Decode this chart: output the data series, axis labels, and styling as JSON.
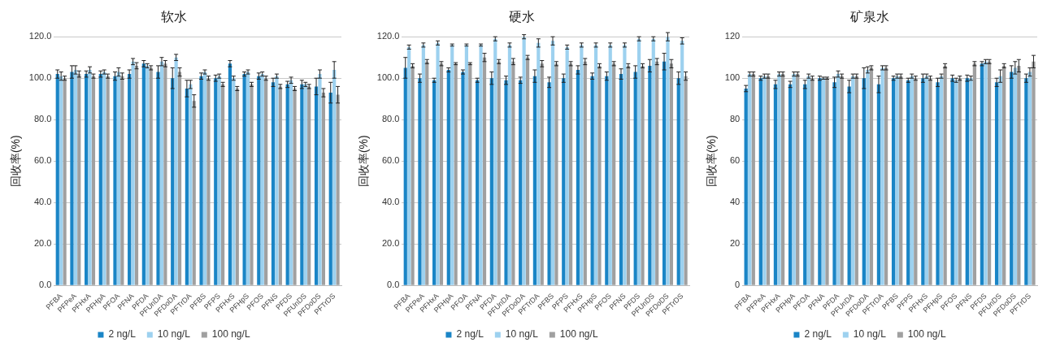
{
  "chart_data": [
    {
      "type": "bar",
      "title": "软水",
      "ylabel": "回收率(%)",
      "categories": [
        "PFBA",
        "PFPeA",
        "PFHxA",
        "PFHpA",
        "PFOA",
        "PFNA",
        "PFDA",
        "PFUnDA",
        "PFDoDA",
        "PFTrDA",
        "PFBS",
        "PFPS",
        "PFHxS",
        "PFHpS",
        "PFOS",
        "PFNS",
        "PFDS",
        "PFUnDS",
        "PFDoDS",
        "PFTrDS"
      ],
      "series": [
        {
          "name": "2 ng/L",
          "color": "#1a85c6",
          "values": [
            102,
            103,
            102,
            102,
            101,
            102,
            107,
            103,
            100,
            95,
            101,
            100,
            107,
            102,
            101,
            98,
            97,
            97,
            96,
            93
          ],
          "errors": [
            2,
            3,
            1.5,
            1.5,
            2,
            2,
            1.5,
            3,
            5,
            4,
            1.5,
            1.5,
            1.5,
            1,
            1.5,
            2,
            1.5,
            2,
            4,
            5
          ]
        },
        {
          "name": "10 ng/L",
          "color": "#9dd1ef",
          "values": [
            101,
            104,
            104,
            103,
            103,
            108,
            106,
            108,
            110,
            97,
            103,
            101,
            100,
            103,
            102,
            101,
            99,
            97,
            102,
            104
          ],
          "errors": [
            2,
            2,
            1.5,
            1,
            2,
            1.5,
            1,
            2,
            1.5,
            2,
            1,
            1,
            1,
            1,
            1,
            1,
            1.5,
            1,
            2,
            4
          ]
        },
        {
          "name": "100 ng/L",
          "color": "#a0a0a0",
          "values": [
            100,
            102,
            101,
            101,
            101,
            106,
            105,
            107,
            103,
            89,
            100,
            97,
            95,
            97,
            100,
            96,
            95,
            96,
            93,
            92
          ],
          "errors": [
            1,
            1.5,
            1,
            1,
            1.5,
            1.5,
            1,
            1.5,
            2,
            3,
            1,
            1,
            1,
            1,
            1,
            1,
            1,
            1,
            2,
            4
          ]
        }
      ],
      "ylim": [
        0,
        120
      ],
      "yticks": [
        {
          "value": 0,
          "label": "0.0"
        },
        {
          "value": 20,
          "label": "20.0"
        },
        {
          "value": 40,
          "label": "40.0"
        },
        {
          "value": 60,
          "label": "60.0"
        },
        {
          "value": 80,
          "label": "80.0"
        },
        {
          "value": 100,
          "label": "100.0"
        },
        {
          "value": 120,
          "label": "120.0"
        }
      ],
      "grid": "y",
      "legend": "bottom"
    },
    {
      "type": "bar",
      "title": "硬水",
      "ylabel": "回收率(%)",
      "categories": [
        "PFBA",
        "PFPeA",
        "PFHxA",
        "PFHpA",
        "PFOA",
        "PFNA",
        "PFDA",
        "PFUnDA",
        "PFDoDA",
        "PFTrDA",
        "PFBS",
        "PFPS",
        "PFHxS",
        "PFHpS",
        "PFOS",
        "PFNS",
        "PFDS",
        "PFUnDS",
        "PFDoDS",
        "PFTrDS"
      ],
      "series": [
        {
          "name": "2 ng/L",
          "color": "#1a85c6",
          "values": [
            105,
            100,
            99,
            104,
            103,
            99,
            100,
            99,
            99,
            101,
            98,
            100,
            104,
            101,
            101,
            102,
            103,
            106,
            108,
            100
          ],
          "errors": [
            5,
            2,
            1,
            1,
            1,
            1,
            3,
            2,
            1.5,
            3,
            2.5,
            2,
            2,
            1.5,
            2,
            2.5,
            3,
            3,
            4,
            3
          ]
        },
        {
          "name": "10 ng/L",
          "color": "#9dd1ef",
          "values": [
            115,
            116,
            117,
            116,
            116,
            116,
            119,
            116,
            120,
            117,
            118,
            115,
            116,
            116,
            116,
            116,
            119,
            119,
            120,
            118
          ],
          "errors": [
            1,
            1,
            1,
            0.5,
            0.5,
            0.5,
            1,
            1,
            1,
            2,
            2,
            1,
            1,
            1,
            1,
            1,
            1,
            1,
            2,
            1.5
          ]
        },
        {
          "name": "100 ng/L",
          "color": "#a0a0a0",
          "values": [
            106,
            108,
            107,
            107,
            107,
            110,
            108,
            108,
            110,
            107,
            107,
            107,
            108,
            106,
            107,
            106,
            106,
            108,
            107,
            101
          ],
          "errors": [
            1,
            1,
            1,
            0.5,
            0.5,
            2,
            1,
            1.5,
            1,
            1.5,
            1,
            1,
            1.5,
            1,
            1,
            1,
            1,
            1.5,
            2,
            2
          ]
        }
      ],
      "ylim": [
        0,
        120
      ],
      "yticks": [
        {
          "value": 0,
          "label": "0.0"
        },
        {
          "value": 20,
          "label": "20.0"
        },
        {
          "value": 40,
          "label": "40.0"
        },
        {
          "value": 60,
          "label": "60.0"
        },
        {
          "value": 80,
          "label": "80.0"
        },
        {
          "value": 100,
          "label": "100.0"
        },
        {
          "value": 120,
          "label": "120.0"
        }
      ],
      "grid": "y",
      "legend": "bottom"
    },
    {
      "type": "bar",
      "title": "矿泉水",
      "ylabel": "回收率(%)",
      "categories": [
        "PFBA",
        "PFPeA",
        "PFHxA",
        "PFHpA",
        "PFOA",
        "PFNA",
        "PFDA",
        "PFUnDA",
        "PFDoDA",
        "PFTrDA",
        "PFBS",
        "PFPS",
        "PFHxS",
        "PFHpS",
        "PFOS",
        "PFNS",
        "PFDS",
        "PFUnDS",
        "PFDoDS",
        "PFTrDS"
      ],
      "series": [
        {
          "name": "2 ng/L",
          "color": "#1a85c6",
          "values": [
            95,
            100,
            97,
            97,
            97,
            100,
            98,
            96,
            100,
            97,
            100,
            99,
            100,
            98,
            100,
            100,
            107,
            98,
            103,
            100
          ],
          "errors": [
            1.5,
            1,
            2,
            1.5,
            2,
            1,
            2.5,
            3,
            5,
            4,
            1,
            1,
            2,
            2,
            1.5,
            1.5,
            1,
            2,
            3,
            2
          ]
        },
        {
          "name": "10 ng/L",
          "color": "#9dd1ef",
          "values": [
            102,
            101,
            102,
            102,
            101,
            100,
            102,
            101,
            104,
            105,
            101,
            101,
            101,
            101,
            99,
            100,
            108,
            101,
            105,
            103
          ],
          "errors": [
            1,
            1,
            1,
            1,
            1,
            0.5,
            1.5,
            1,
            1.5,
            1,
            1,
            1,
            1,
            1,
            1,
            1,
            1,
            3,
            3,
            2
          ]
        },
        {
          "name": "100 ng/L",
          "color": "#a0a0a0",
          "values": [
            102,
            101,
            102,
            102,
            100,
            100,
            101,
            101,
            105,
            105,
            101,
            100,
            100,
            106,
            100,
            107,
            108,
            106,
            106,
            108
          ],
          "errors": [
            1,
            1,
            1,
            1,
            1,
            0.5,
            1,
            1,
            1,
            1,
            1,
            1,
            1,
            1,
            1,
            1,
            1,
            1,
            3,
            3
          ]
        }
      ],
      "ylim": [
        0,
        120
      ],
      "yticks": [
        0,
        20,
        40,
        60,
        80,
        100,
        120
      ],
      "grid": "y",
      "legend": "bottom"
    }
  ]
}
